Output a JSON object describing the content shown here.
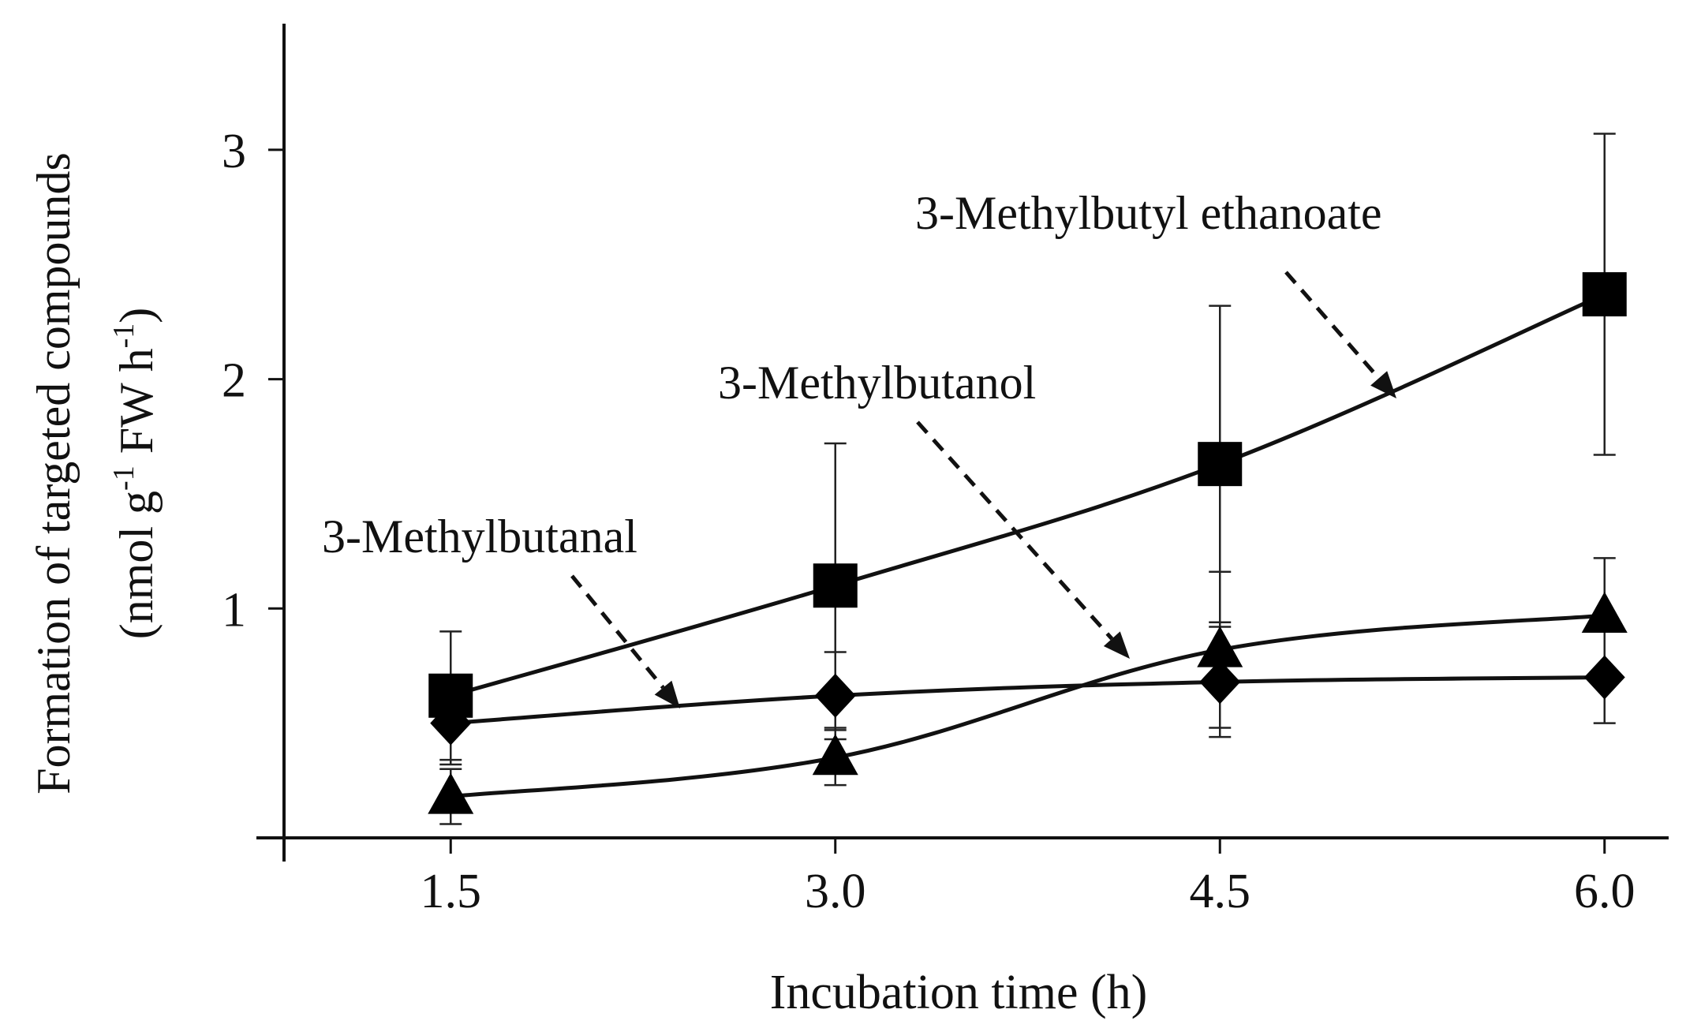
{
  "chart_data": {
    "type": "line",
    "title": "",
    "xlabel": "Incubation time (h)",
    "ylabel_line1": "Formation of targeted compounds",
    "ylabel_line2_parts": [
      "(nmol g",
      "-1",
      " FW h",
      "-1",
      ")"
    ],
    "x": [
      1.5,
      3.0,
      4.5,
      6.0
    ],
    "x_tick_labels": [
      "1.5",
      "3.0",
      "4.5",
      "6.0"
    ],
    "xlim": [
      0.85,
      6.25
    ],
    "y_ticks": [
      1,
      2,
      3
    ],
    "y_tick_labels": [
      "1",
      "2",
      "3"
    ],
    "ylim": [
      0.0,
      3.55
    ],
    "grid": false,
    "legend": "none",
    "series": [
      {
        "name": "3-Methylbutyl ethanoate",
        "marker": "square",
        "values": [
          0.62,
          1.1,
          1.63,
          2.37
        ],
        "error": [
          0.28,
          0.62,
          0.69,
          0.7
        ]
      },
      {
        "name": "3-Methylbutanol",
        "marker": "triangle",
        "values": [
          0.18,
          0.35,
          0.82,
          0.97
        ],
        "error": [
          0.12,
          0.12,
          0.34,
          0.25
        ]
      },
      {
        "name": "3-Methylbutanal",
        "marker": "diamond",
        "values": [
          0.5,
          0.62,
          0.68,
          0.7
        ],
        "error": [
          0.18,
          0.19,
          0.24,
          0.2
        ]
      }
    ],
    "annotations": [
      {
        "text": "3-Methylbutyl ethanoate",
        "series": "3-Methylbutyl ethanoate"
      },
      {
        "text": "3-Methylbutanol",
        "series": "3-Methylbutanol"
      },
      {
        "text": "3-Methylbutanal",
        "series": "3-Methylbutanal"
      }
    ]
  }
}
